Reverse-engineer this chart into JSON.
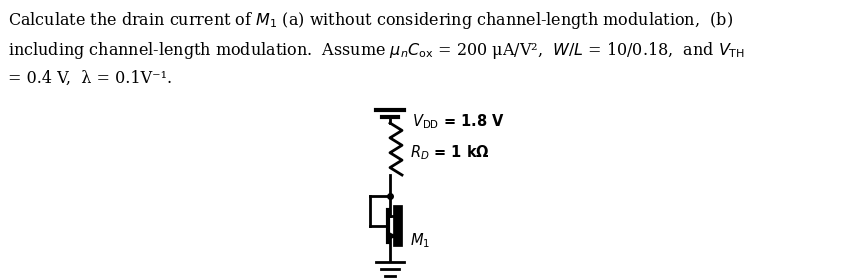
{
  "line1": "Calculate the drain current of $M_1$ (a) without considering channel-length modulation,  (b)",
  "line2": "including channel-length modulation.  Assume $\\mu_n C_{\\mathrm{ox}}$ = 200 μA/V²,  $W/L$ = 10/0.18,  and $V_{\\mathrm{TH}}$",
  "line3": "= 0.4 V,  λ = 0.1V⁻¹.",
  "vdd_label": "$V_{\\mathrm{DD}}$ = 1.8 V",
  "rd_label": "$R_D$ = 1 kΩ",
  "m1_label": "$M_1$",
  "bg_color": "#ffffff",
  "text_color": "#000000",
  "line_color": "#000000",
  "font_size_main": 11.5,
  "font_size_label": 10.5
}
